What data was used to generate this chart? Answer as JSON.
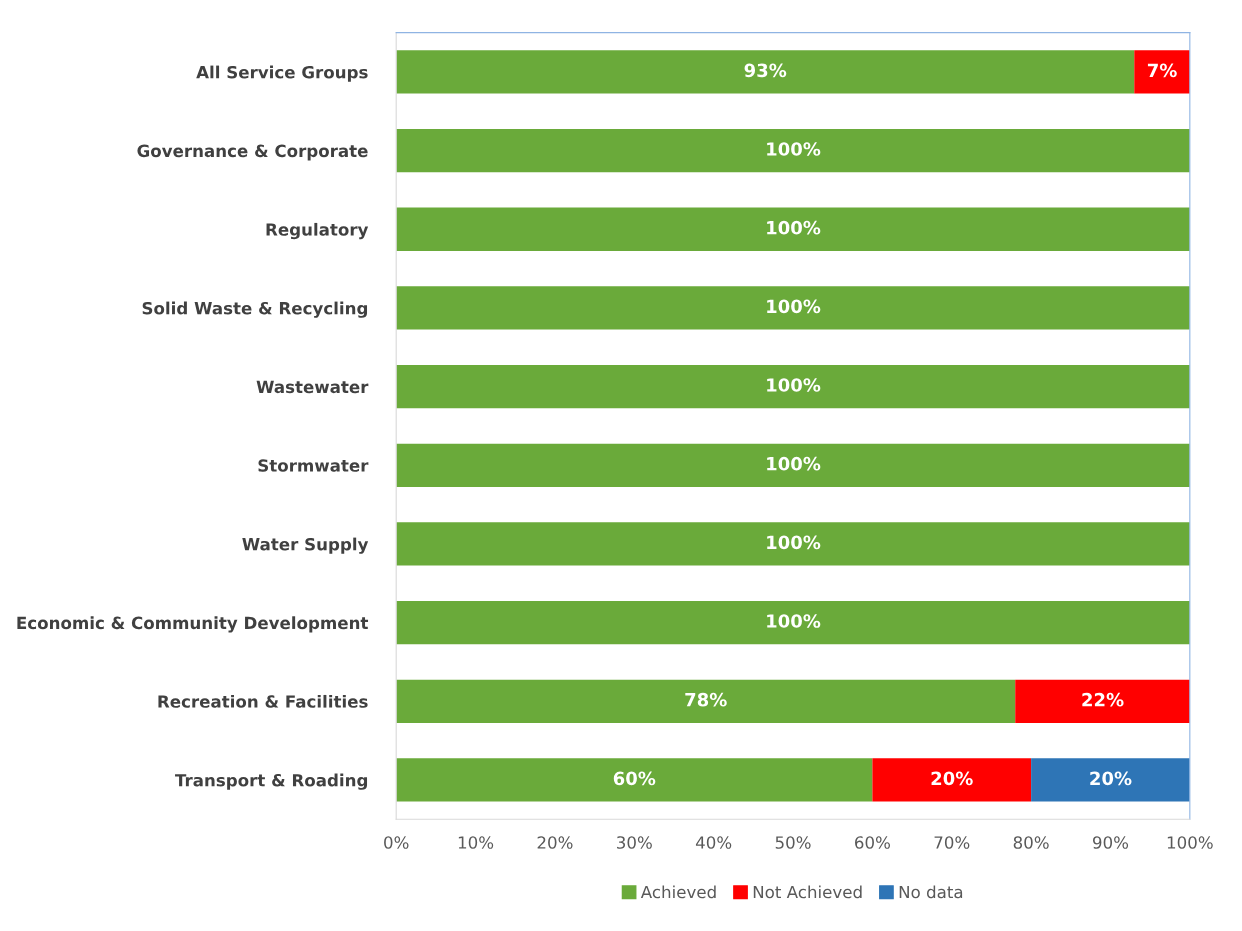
{
  "chart_data": {
    "type": "bar",
    "orientation": "horizontal",
    "stacked": true,
    "categories": [
      "All Service Groups",
      "Governance & Corporate",
      "Regulatory",
      "Solid Waste & Recycling",
      "Wastewater",
      "Stormwater",
      "Water Supply",
      "Economic & Community Development",
      "Recreation & Facilities",
      "Transport & Roading"
    ],
    "series": [
      {
        "name": "Achieved",
        "color": "#6aaa3a",
        "values": [
          93,
          100,
          100,
          100,
          100,
          100,
          100,
          100,
          78,
          60
        ],
        "value_labels": [
          "93%",
          "100%",
          "100%",
          "100%",
          "100%",
          "100%",
          "100%",
          "100%",
          "78%",
          "60%"
        ]
      },
      {
        "name": "Not Achieved",
        "color": "#ff0000",
        "values": [
          7,
          0,
          0,
          0,
          0,
          0,
          0,
          0,
          22,
          20
        ],
        "value_labels": [
          "7%",
          null,
          null,
          null,
          null,
          null,
          null,
          null,
          "22%",
          "20%"
        ]
      },
      {
        "name": "No data",
        "color": "#2e75b6",
        "values": [
          0,
          0,
          0,
          0,
          0,
          0,
          0,
          0,
          0,
          20
        ],
        "value_labels": [
          null,
          null,
          null,
          null,
          null,
          null,
          null,
          null,
          null,
          "20%"
        ]
      }
    ],
    "xlim": [
      0,
      100
    ],
    "xticks": [
      {
        "value": 0,
        "label": "0%"
      },
      {
        "value": 10,
        "label": "10%"
      },
      {
        "value": 20,
        "label": "20%"
      },
      {
        "value": 30,
        "label": "30%"
      },
      {
        "value": 40,
        "label": "40%"
      },
      {
        "value": 50,
        "label": "50%"
      },
      {
        "value": 60,
        "label": "60%"
      },
      {
        "value": 70,
        "label": "70%"
      },
      {
        "value": 80,
        "label": "80%"
      },
      {
        "value": 90,
        "label": "90%"
      },
      {
        "value": 100,
        "label": "100%"
      }
    ],
    "grid": false,
    "legend": "bottom"
  }
}
